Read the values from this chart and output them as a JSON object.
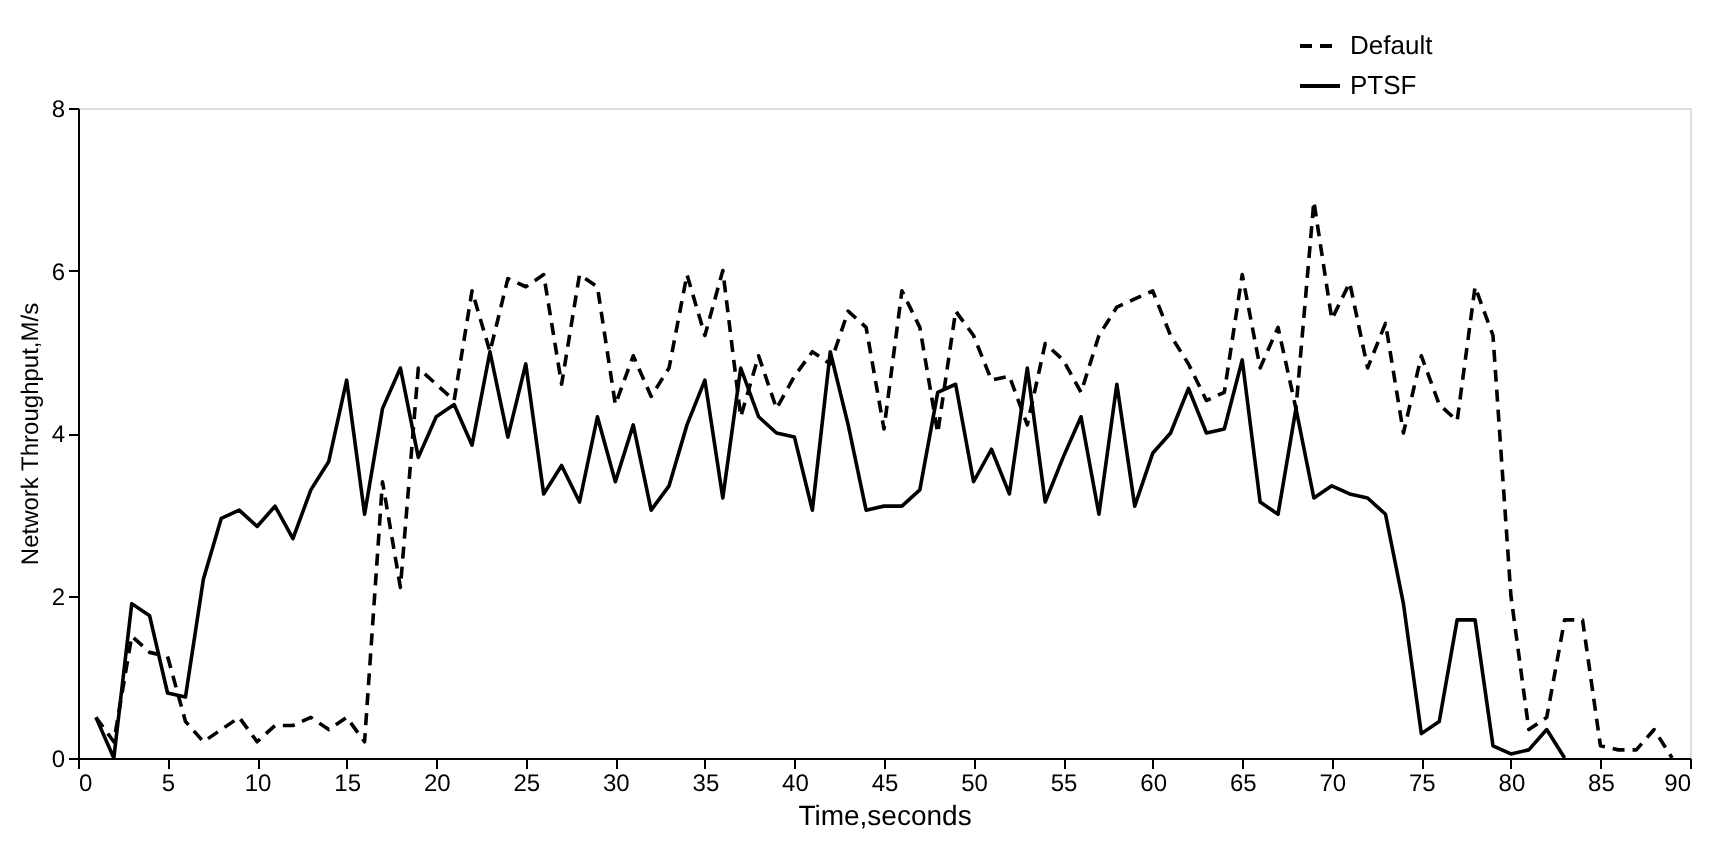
{
  "chart_data": {
    "type": "line",
    "xlabel": "Time,seconds",
    "ylabel": "Network Throughput,M/s",
    "xlim": [
      0,
      90
    ],
    "xticks": [
      0,
      5,
      10,
      15,
      20,
      25,
      30,
      35,
      40,
      45,
      50,
      55,
      60,
      65,
      70,
      75,
      80,
      85,
      90
    ],
    "ylim": [
      0,
      8
    ],
    "yticks": [
      0,
      2,
      4,
      6,
      8
    ],
    "grid": false,
    "legend": "top right",
    "marker": "none",
    "series": [
      {
        "name": "Default",
        "color": "#000000",
        "line_style": "dashed",
        "x": [
          1,
          2,
          3,
          4,
          5,
          6,
          7,
          8,
          9,
          10,
          11,
          12,
          13,
          14,
          15,
          16,
          17,
          18,
          19,
          20,
          21,
          22,
          23,
          24,
          25,
          26,
          27,
          28,
          29,
          30,
          31,
          32,
          33,
          34,
          35,
          36,
          37,
          38,
          39,
          40,
          41,
          42,
          43,
          44,
          45,
          46,
          47,
          48,
          49,
          50,
          51,
          52,
          53,
          54,
          55,
          56,
          57,
          58,
          59,
          60,
          61,
          62,
          63,
          64,
          65,
          66,
          67,
          68,
          69,
          70,
          71,
          72,
          73,
          74,
          75,
          76,
          77,
          78,
          79,
          80,
          81,
          82,
          83,
          84,
          85,
          86,
          87,
          88,
          89
        ],
        "values": [
          0.5,
          0.2,
          1.5,
          1.3,
          1.25,
          0.45,
          0.2,
          0.35,
          0.5,
          0.2,
          0.4,
          0.4,
          0.5,
          0.35,
          0.5,
          0.2,
          3.4,
          2.1,
          4.8,
          4.6,
          4.4,
          5.75,
          5.0,
          5.9,
          5.8,
          5.95,
          4.6,
          5.95,
          5.8,
          4.35,
          4.95,
          4.45,
          4.8,
          5.95,
          5.2,
          6.0,
          4.2,
          4.95,
          4.3,
          4.7,
          5.0,
          4.85,
          5.5,
          5.3,
          4.05,
          5.75,
          5.3,
          4.0,
          5.5,
          5.2,
          4.65,
          4.7,
          4.1,
          5.1,
          4.9,
          4.5,
          5.2,
          5.55,
          5.65,
          5.75,
          5.2,
          4.85,
          4.4,
          4.5,
          5.95,
          4.8,
          5.3,
          4.3,
          6.85,
          5.4,
          5.85,
          4.8,
          5.35,
          4.0,
          4.95,
          4.35,
          4.15,
          5.8,
          5.2,
          2.0,
          0.35,
          0.5,
          1.7,
          1.7,
          0.15,
          0.1,
          0.1,
          0.35,
          0.0
        ]
      },
      {
        "name": "PTSF",
        "color": "#000000",
        "line_style": "solid",
        "x": [
          1,
          2,
          3,
          4,
          5,
          6,
          7,
          8,
          9,
          10,
          11,
          12,
          13,
          14,
          15,
          16,
          17,
          18,
          19,
          20,
          21,
          22,
          23,
          24,
          25,
          26,
          27,
          28,
          29,
          30,
          31,
          32,
          33,
          34,
          35,
          36,
          37,
          38,
          39,
          40,
          41,
          42,
          43,
          44,
          45,
          46,
          47,
          48,
          49,
          50,
          51,
          52,
          53,
          54,
          55,
          56,
          57,
          58,
          59,
          60,
          61,
          62,
          63,
          64,
          65,
          66,
          67,
          68,
          69,
          70,
          71,
          72,
          73,
          74,
          75,
          76,
          77,
          78,
          79,
          80,
          81,
          82,
          83
        ],
        "values": [
          0.5,
          0.0,
          1.9,
          1.75,
          0.8,
          0.75,
          2.2,
          2.95,
          3.05,
          2.85,
          3.1,
          2.7,
          3.3,
          3.65,
          4.65,
          3.0,
          4.3,
          4.8,
          3.7,
          4.2,
          4.35,
          3.85,
          5.0,
          3.95,
          4.85,
          3.25,
          3.6,
          3.15,
          4.2,
          3.4,
          4.1,
          3.05,
          3.35,
          4.1,
          4.65,
          3.2,
          4.8,
          4.2,
          4.0,
          3.95,
          3.05,
          5.0,
          4.1,
          3.05,
          3.1,
          3.1,
          3.3,
          4.5,
          4.6,
          3.4,
          3.8,
          3.25,
          4.8,
          3.15,
          3.7,
          4.2,
          3.0,
          4.6,
          3.1,
          3.75,
          4.0,
          4.55,
          4.0,
          4.05,
          4.9,
          3.15,
          3.0,
          4.3,
          3.2,
          3.35,
          3.25,
          3.2,
          3.0,
          1.9,
          0.3,
          0.45,
          1.7,
          1.7,
          0.15,
          0.05,
          0.1,
          0.35,
          0.0
        ]
      }
    ]
  }
}
